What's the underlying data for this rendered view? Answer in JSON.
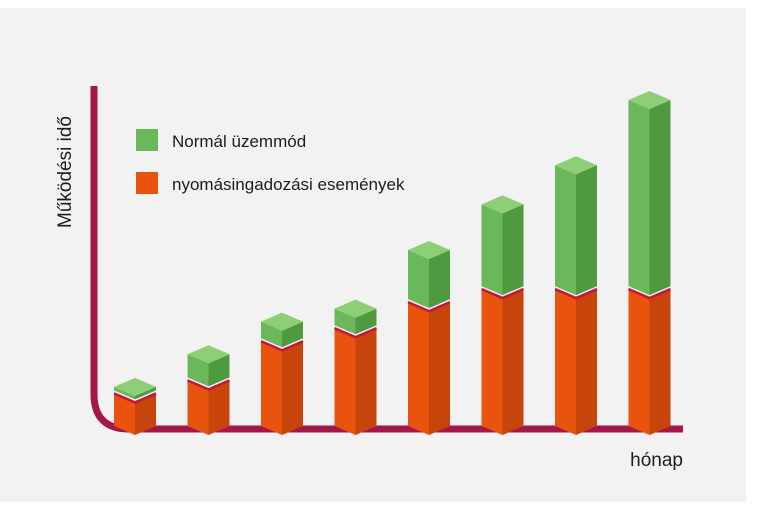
{
  "chart_data": {
    "type": "bar",
    "stacked": true,
    "style": "3d",
    "title": "",
    "xlabel": "hónap",
    "ylabel": "Működési idő",
    "categories": [
      "",
      "",
      "",
      "",
      "",
      "",
      "",
      ""
    ],
    "series": [
      {
        "name": "nyomásingadozási események",
        "values": [
          2.5,
          3.5,
          6.5,
          7.5,
          9.5,
          10.5,
          10.5,
          10.5
        ]
      },
      {
        "name": "Normál üzemmód",
        "values": [
          0.5,
          2.0,
          1.5,
          1.5,
          4.0,
          6.5,
          9.5,
          14.5
        ]
      }
    ],
    "ylim": [
      0,
      25
    ],
    "legend": "top-left",
    "grid": false,
    "colors": {
      "axis": "#a5164b",
      "series_front": [
        "#e8530e",
        "#6bb85a"
      ],
      "series_side": [
        "#c7440a",
        "#4f9a40"
      ],
      "series_top": [
        "#f0743a",
        "#8ccf77"
      ],
      "divider": "#c4153f"
    }
  }
}
